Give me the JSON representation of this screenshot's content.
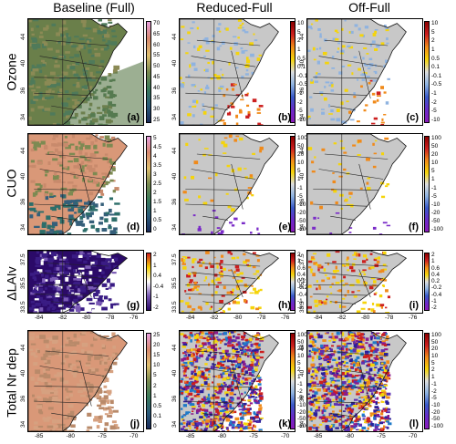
{
  "columns": [
    "Baseline (Full)",
    "Reduced-Full",
    "Off-Full"
  ],
  "rows": [
    {
      "label": "Ozone",
      "panels": [
        "(a)",
        "(b)",
        "(c)"
      ],
      "cbar_baseline": [
        "70",
        "65",
        "60",
        "55",
        "50",
        "45",
        "40",
        "35",
        "30",
        "25"
      ],
      "cbar_diff": [
        "10",
        "5",
        "2",
        "1",
        "0.5",
        "0.1",
        "-0.1",
        "-0.5",
        "-1",
        "-2",
        "-5",
        "-10"
      ],
      "y_ticks": [
        "44",
        "40",
        "36",
        "34"
      ],
      "x_ticks": [],
      "baseline_map": "ozone",
      "diff_map": "ozone"
    },
    {
      "label": "CUO",
      "panels": [
        "(d)",
        "(e)",
        "(f)"
      ],
      "cbar_baseline": [
        "5",
        "4.5",
        "4",
        "3.5",
        "3",
        "2.5",
        "2",
        "1.5",
        "1",
        "0.5",
        "0"
      ],
      "cbar_diff": [
        "100",
        "50",
        "20",
        "10",
        "5",
        "1",
        "-1",
        "-5",
        "-10",
        "-20",
        "-50",
        "-100"
      ],
      "y_ticks": [
        "44",
        "40",
        "36",
        "34"
      ],
      "x_ticks": [],
      "baseline_map": "cuo",
      "diff_map": "cuo"
    },
    {
      "label": "ΔLAIv",
      "panels": [
        "(g)",
        "(h)",
        "(i)"
      ],
      "cbar_baseline": [
        "2",
        "1",
        "0.4",
        "-0.4",
        "-1",
        "-2"
      ],
      "cbar_diff": [
        "2",
        "1",
        "0.6",
        "0.4",
        "0.2",
        "-0.2",
        "-0.4",
        "-1",
        "-2"
      ],
      "y_ticks": [
        "37.5",
        "35.5",
        "33.5"
      ],
      "x_ticks": [
        "-84",
        "-82",
        "-80",
        "-78",
        "-76"
      ],
      "baseline_map": "lai",
      "diff_map": "lai"
    },
    {
      "label": "Total Nr dep",
      "panels": [
        "(j)",
        "(k)",
        "(l)"
      ],
      "cbar_baseline": [
        "25",
        "20",
        "15",
        "10",
        "5",
        "2",
        "1",
        "0.5",
        "0.1",
        "0"
      ],
      "cbar_diff": [
        "100",
        "50",
        "20",
        "10",
        "5",
        "2",
        "1",
        "-1",
        "-2",
        "-5",
        "-10",
        "-20",
        "-50",
        "-100"
      ],
      "y_ticks": [
        "44",
        "40",
        "36",
        "34"
      ],
      "x_ticks": [
        "-85",
        "-80",
        "-75",
        "-70"
      ],
      "baseline_map": "nr",
      "diff_map": "nr"
    }
  ],
  "colors": {
    "land_gray": "#c8c8c8",
    "baseline_green": "#6a7f4a",
    "baseline_salmon": "#d99878",
    "purple_dark": "#2b0a68",
    "accent_red": "#cc1f1f",
    "accent_yellow": "#f5d40a",
    "accent_blue": "#8fb3e0"
  }
}
